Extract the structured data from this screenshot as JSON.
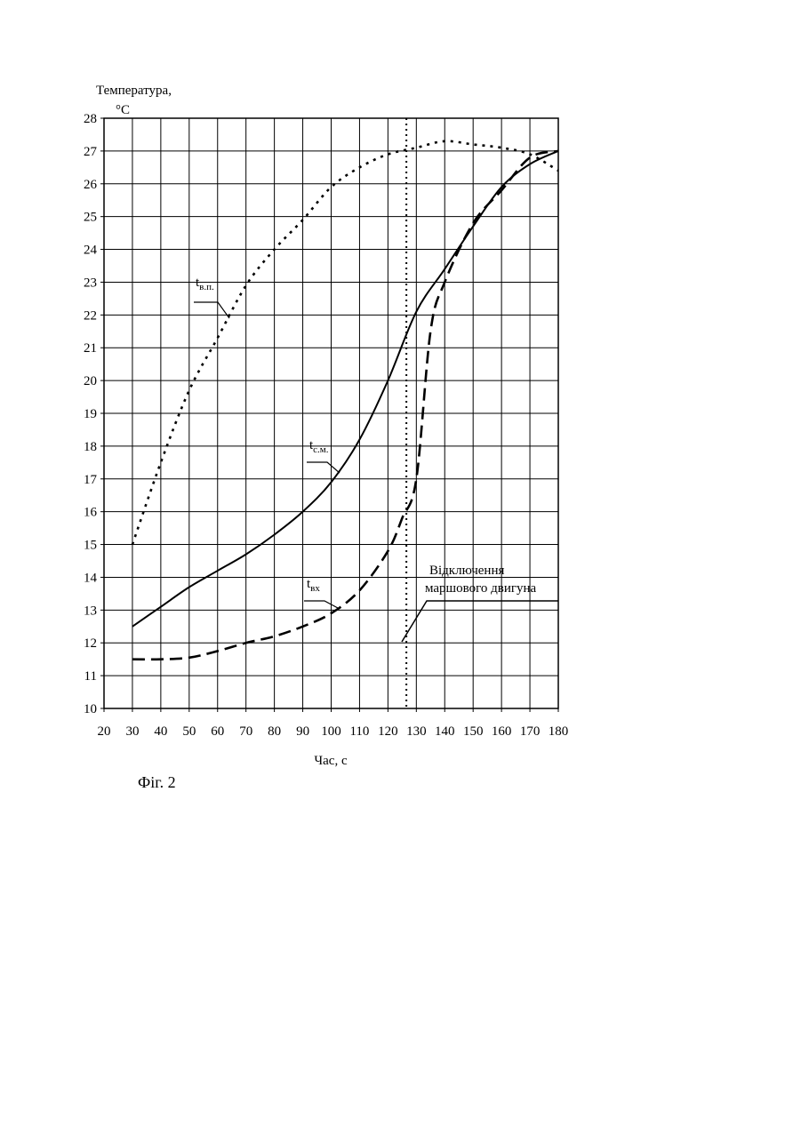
{
  "chart_data": {
    "type": "line",
    "y_label": [
      "Температура,",
      "°С"
    ],
    "x_label": "Час, с",
    "caption": "Фіг. 2",
    "xlim": [
      20,
      180
    ],
    "xticks": [
      20,
      30,
      40,
      50,
      60,
      70,
      80,
      90,
      100,
      110,
      120,
      130,
      140,
      150,
      160,
      170,
      180
    ],
    "ylim": [
      10,
      28
    ],
    "yticks": [
      10,
      11,
      12,
      13,
      14,
      15,
      16,
      17,
      18,
      19,
      20,
      21,
      22,
      23,
      24,
      25,
      26,
      27,
      28
    ],
    "grid": true,
    "series": [
      {
        "name": "tв.п.",
        "color": "#000000",
        "linestyle": "dotted",
        "x": [
          30,
          40,
          50,
          60,
          70,
          80,
          90,
          100,
          110,
          120,
          130,
          140,
          150,
          160,
          170,
          180
        ],
        "values": [
          15,
          17.5,
          19.7,
          21.3,
          22.9,
          24,
          24.9,
          25.9,
          26.5,
          26.9,
          27.1,
          27.3,
          27.2,
          27.1,
          26.9,
          26.4
        ]
      },
      {
        "name": "tс.м.",
        "color": "#000000",
        "linestyle": "solid",
        "x": [
          30,
          40,
          50,
          60,
          70,
          80,
          90,
          100,
          110,
          120,
          130,
          140,
          150,
          160,
          170,
          180
        ],
        "values": [
          12.5,
          13.1,
          13.7,
          14.2,
          14.7,
          15.3,
          16,
          16.9,
          18.2,
          20,
          22.1,
          23.4,
          24.7,
          25.9,
          26.6,
          27
        ]
      },
      {
        "name": "tвх",
        "color": "#000000",
        "linestyle": "dashed",
        "x": [
          30,
          40,
          50,
          60,
          70,
          80,
          90,
          100,
          110,
          120,
          125,
          130,
          135,
          140,
          150,
          160,
          170,
          180
        ],
        "values": [
          11.5,
          11.5,
          11.55,
          11.75,
          12,
          12.2,
          12.5,
          12.9,
          13.6,
          14.8,
          15.8,
          17,
          21.5,
          23,
          24.8,
          25.8,
          26.8,
          27
        ]
      }
    ],
    "vline": {
      "x": 126.5,
      "label": [
        "Відключення",
        "маршового двигуна"
      ]
    }
  }
}
